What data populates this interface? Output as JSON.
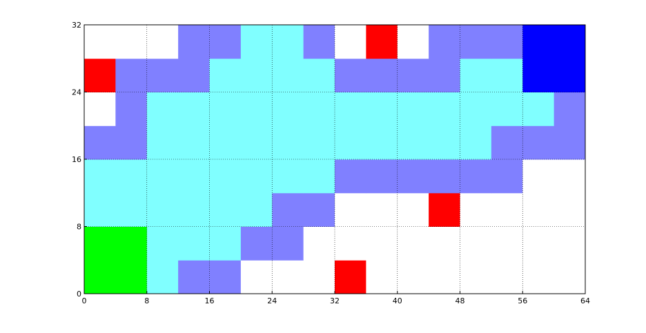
{
  "chart_data": {
    "type": "heatmap",
    "xlim": [
      0,
      64
    ],
    "ylim": [
      0,
      32
    ],
    "xticks": [
      0,
      8,
      16,
      24,
      32,
      40,
      48,
      56,
      64
    ],
    "yticks": [
      0,
      8,
      16,
      24,
      32
    ],
    "grid": true,
    "colors": [
      "#ffffff",
      "#8080ff",
      "#80ffff",
      "#ff0000",
      "#00ff00",
      "#0000ff"
    ],
    "cell_size": 4,
    "rows": [
      [
        4,
        4,
        2,
        1,
        1,
        0,
        0,
        0,
        3,
        0,
        0,
        0,
        0,
        0,
        0,
        0
      ],
      [
        4,
        4,
        2,
        2,
        2,
        1,
        1,
        0,
        0,
        0,
        0,
        0,
        0,
        0,
        0,
        0
      ],
      [
        2,
        2,
        2,
        2,
        2,
        2,
        1,
        1,
        0,
        0,
        0,
        3,
        0,
        0,
        0,
        0
      ],
      [
        2,
        2,
        2,
        2,
        2,
        2,
        2,
        2,
        1,
        1,
        1,
        1,
        1,
        1,
        0,
        0
      ],
      [
        1,
        1,
        2,
        2,
        2,
        2,
        2,
        2,
        2,
        2,
        2,
        2,
        2,
        1,
        1,
        1
      ],
      [
        0,
        1,
        2,
        2,
        2,
        2,
        2,
        2,
        2,
        2,
        2,
        2,
        2,
        2,
        2,
        1
      ],
      [
        3,
        1,
        1,
        1,
        2,
        2,
        2,
        2,
        1,
        1,
        1,
        1,
        2,
        2,
        5,
        5
      ],
      [
        0,
        0,
        0,
        1,
        1,
        2,
        2,
        1,
        0,
        3,
        0,
        1,
        1,
        1,
        5,
        5
      ]
    ]
  }
}
